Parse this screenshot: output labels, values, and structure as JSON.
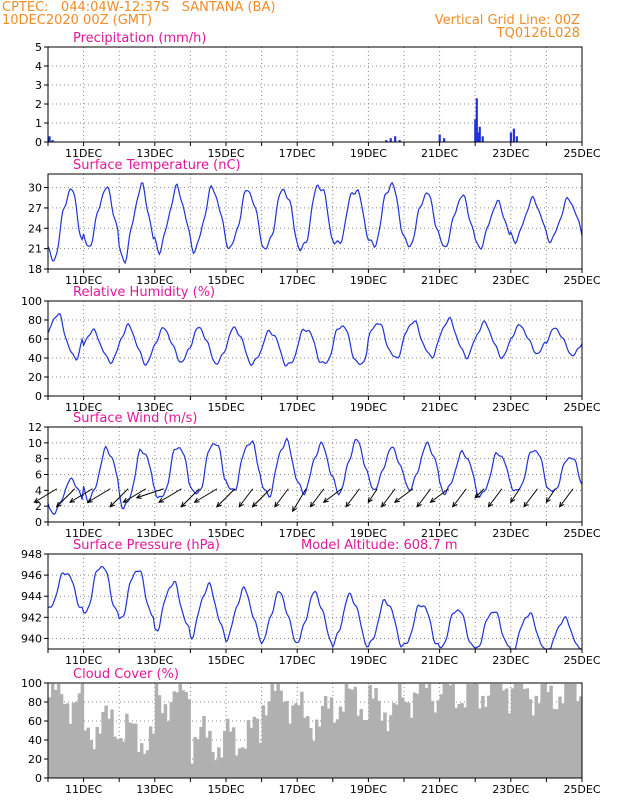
{
  "header": {
    "line1_left": "CPTEC:   044:04W-12:37S   SANTANA (BA)",
    "line2_left": "10DEC2020 00Z (GMT)",
    "line1_right": "Vertical Grid Line: 00Z",
    "line2_right": "TQ0126L028"
  },
  "colors": {
    "header": "#f08c28",
    "title": "#e0189a",
    "series": "#2033d8",
    "cloud": "#b0b0b0",
    "arrow": "#000000"
  },
  "x_axis": {
    "start": "10DEC2020 00Z",
    "end": "25DEC2020 00Z",
    "tick_labels": [
      "11DEC",
      "13DEC",
      "15DEC",
      "17DEC",
      "19DEC",
      "21DEC",
      "23DEC",
      "25DEC"
    ],
    "tick_day_offsets": [
      1,
      3,
      5,
      7,
      9,
      11,
      13,
      15
    ]
  },
  "chart_data": [
    {
      "id": "precip",
      "type": "bar",
      "title": "Precipitation (mm/h)",
      "ylim": [
        0,
        5
      ],
      "yticks": [
        0,
        1,
        2,
        3,
        4,
        5
      ],
      "grid": true,
      "x": [
        "10DEC 01Z",
        "10DEC 03Z",
        "19DEC 12Z",
        "19DEC 15Z",
        "19DEC 18Z",
        "19DEC 21Z",
        "21DEC 00Z",
        "21DEC 03Z",
        "22DEC 00Z",
        "22DEC 01Z",
        "22DEC 02Z",
        "22DEC 03Z",
        "22DEC 05Z",
        "23DEC 00Z",
        "23DEC 02Z",
        "23DEC 04Z"
      ],
      "values": [
        0.3,
        0.1,
        0.1,
        0.2,
        0.3,
        0.1,
        0.4,
        0.2,
        1.2,
        2.3,
        0.5,
        0.8,
        0.3,
        0.5,
        0.7,
        0.3
      ]
    },
    {
      "id": "temperature",
      "type": "line",
      "title": "Surface Temperature (nC)",
      "ylim": [
        18,
        32
      ],
      "yticks": [
        18,
        21,
        24,
        27,
        30
      ],
      "grid": true,
      "daily_max": [
        30.2,
        30.2,
        30.5,
        30.2,
        30.2,
        30.0,
        30.2,
        31.0,
        30.2,
        31.0,
        29.5,
        29.0,
        28.0,
        28.5,
        28.5
      ],
      "daily_min": [
        18.8,
        21.0,
        19.0,
        20.5,
        20.5,
        20.8,
        20.5,
        20.2,
        21.0,
        20.8,
        21.0,
        21.0,
        21.0,
        22.0,
        22.0
      ]
    },
    {
      "id": "humidity",
      "type": "line",
      "title": "Relative Humidity (%)",
      "ylim": [
        0,
        100
      ],
      "yticks": [
        0,
        20,
        40,
        60,
        80,
        100
      ],
      "grid": true,
      "daily_max": [
        88,
        70,
        75,
        72,
        73,
        73,
        70,
        73,
        77,
        79,
        80,
        82,
        78,
        75,
        72
      ],
      "daily_min": [
        38,
        35,
        33,
        35,
        33,
        32,
        30,
        31,
        30,
        38,
        40,
        40,
        40,
        44,
        42
      ]
    },
    {
      "id": "wind",
      "type": "line",
      "title": "Surface Wind (m/s)",
      "ylim": [
        0,
        12
      ],
      "yticks": [
        0,
        2,
        4,
        6,
        8,
        10,
        12
      ],
      "grid": true,
      "daily_max": [
        5.5,
        9.5,
        9.5,
        10.0,
        10.5,
        10.5,
        10.5,
        10.0,
        10.5,
        9.5,
        10.0,
        9.0,
        9.0,
        9.5,
        8.5
      ],
      "daily_min": [
        1.0,
        2.5,
        1.5,
        2.5,
        3.0,
        3.5,
        3.0,
        3.5,
        3.5,
        4.0,
        4.0,
        3.5,
        3.0,
        3.5,
        3.5
      ],
      "arrows_u": [
        5,
        4,
        5,
        5,
        4,
        5,
        6,
        5,
        4,
        5,
        4,
        3,
        4,
        3,
        3,
        3,
        4,
        3,
        2,
        3,
        4,
        3,
        4,
        3,
        2,
        3,
        2,
        3,
        2,
        3
      ],
      "arrows_v": [
        3,
        4,
        3,
        3,
        4,
        3,
        2,
        3,
        4,
        3,
        4,
        4,
        4,
        4,
        5,
        4,
        3,
        4,
        3,
        4,
        3,
        4,
        3,
        4,
        2,
        4,
        3,
        4,
        3,
        4
      ]
    },
    {
      "id": "pressure",
      "type": "line",
      "title": "Surface Pressure (hPa)",
      "annotation": "Model Altitude: 608.7 m",
      "ylim": [
        939,
        948
      ],
      "yticks": [
        940,
        942,
        944,
        946,
        948
      ],
      "grid": true,
      "daily_max": [
        946.5,
        947.2,
        946.8,
        945.5,
        945.2,
        944.8,
        944.5,
        944.5,
        944.3,
        943.8,
        943.5,
        943.0,
        942.8,
        942.5,
        942.0
      ],
      "daily_min": [
        942.5,
        942.0,
        941.5,
        940.5,
        940.0,
        939.8,
        939.5,
        939.5,
        939.2,
        939.0,
        939.0,
        938.8,
        938.8,
        938.5,
        938.5
      ]
    },
    {
      "id": "cloud",
      "type": "bar",
      "title": "Cloud Cover (%)",
      "ylim": [
        0,
        100
      ],
      "yticks": [
        0,
        20,
        40,
        60,
        80,
        100
      ],
      "grid": true,
      "daily_mean": [
        85,
        55,
        45,
        85,
        40,
        45,
        85,
        65,
        80,
        75,
        90,
        92,
        95,
        92,
        92
      ]
    }
  ]
}
